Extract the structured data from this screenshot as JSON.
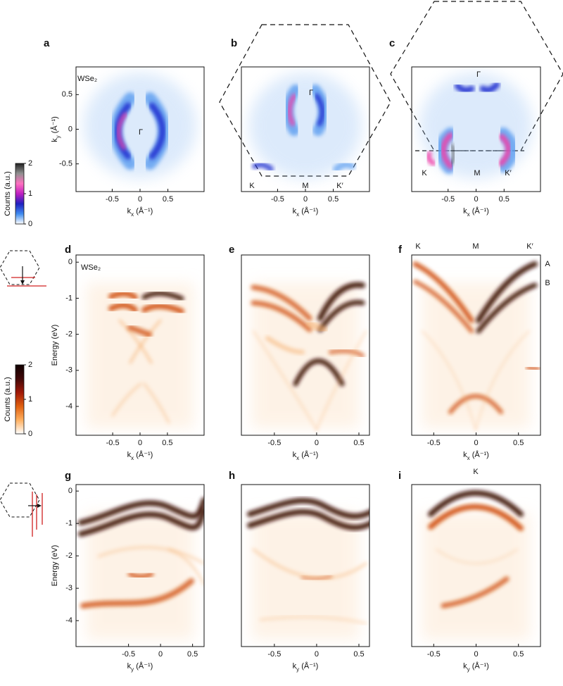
{
  "panels": [
    {
      "letter": "a",
      "xlim": [
        -1.15,
        1.15
      ],
      "ylim": [
        -0.9,
        0.9
      ],
      "xticks": [
        -0.5,
        0,
        0.5
      ],
      "yticks": [
        -0.5,
        0,
        0.5
      ],
      "xlabel": {
        "base": "k",
        "sub": "x",
        "unit": " (Å⁻¹)"
      },
      "ylabel": {
        "base": "k",
        "sub": "y",
        "unit": " (Å⁻¹)"
      },
      "annotations": [
        "WSe₂",
        "Γ"
      ]
    },
    {
      "letter": "b",
      "xlim": [
        -1.15,
        1.15
      ],
      "ylim": [
        -0.9,
        0.9
      ],
      "xticks": [
        -0.5,
        0,
        0.5
      ],
      "xlabel": {
        "base": "k",
        "sub": "x",
        "unit": " (Å⁻¹)"
      },
      "annotations": [
        "Γ",
        "K",
        "M",
        "K′"
      ]
    },
    {
      "letter": "c",
      "xlim": [
        -1.15,
        1.15
      ],
      "ylim": [
        -0.9,
        0.9
      ],
      "xticks": [
        -0.5,
        0,
        0.5
      ],
      "xlabel": {
        "base": "k",
        "sub": "x",
        "unit": " (Å⁻¹)"
      },
      "annotations": [
        "Γ",
        "K",
        "M",
        "K′"
      ]
    },
    {
      "letter": "d",
      "xlim": [
        -1.17,
        1.17
      ],
      "ylim": [
        -4.8,
        0.2
      ],
      "xticks": [
        -0.5,
        0,
        0.5
      ],
      "yticks": [
        0,
        -1,
        -2,
        -3,
        -4
      ],
      "xlabel": {
        "base": "k",
        "sub": "x",
        "unit": " (Å⁻¹)"
      },
      "ylabel": "Energy (eV)",
      "annotations": [
        "WSe₂"
      ]
    },
    {
      "letter": "e",
      "xlim": [
        -0.89,
        0.625
      ],
      "ylim": [
        -4.8,
        0.2
      ],
      "xticks": [
        -0.5,
        0,
        0.5
      ],
      "xlabel": {
        "base": "k",
        "sub": "x",
        "unit": " (Å⁻¹)"
      },
      "annotations": []
    },
    {
      "letter": "f",
      "xlim": [
        -0.76,
        0.76
      ],
      "ylim": [
        -4.8,
        0.2
      ],
      "xticks": [
        -0.5,
        0,
        0.5
      ],
      "xlabel": {
        "base": "k",
        "sub": "x",
        "unit": " (Å⁻¹)"
      },
      "annotations": [
        "K",
        "M",
        "K′",
        "A",
        "B"
      ]
    },
    {
      "letter": "g",
      "xlim": [
        -1.32,
        0.68
      ],
      "ylim": [
        -4.8,
        0.2
      ],
      "xticks": [
        -0.5,
        0,
        0.5
      ],
      "yticks": [
        0,
        -1,
        -2,
        -3,
        -4
      ],
      "xlabel": {
        "base": "k",
        "sub": "y",
        "unit": " (Å⁻¹)"
      },
      "ylabel": "Energy (eV)",
      "annotations": []
    },
    {
      "letter": "h",
      "xlim": [
        -0.89,
        0.625
      ],
      "ylim": [
        -4.8,
        0.2
      ],
      "xticks": [
        -0.5,
        0,
        0.5
      ],
      "xlabel": {
        "base": "k",
        "sub": "y",
        "unit": " (Å⁻¹)"
      },
      "annotations": []
    },
    {
      "letter": "i",
      "xlim": [
        -0.76,
        0.76
      ],
      "ylim": [
        -4.8,
        0.2
      ],
      "xticks": [
        -0.5,
        0,
        0.5
      ],
      "xlabel": {
        "base": "k",
        "sub": "y",
        "unit": " (Å⁻¹)"
      },
      "annotations": [
        "K"
      ]
    }
  ],
  "colorbars": [
    {
      "label": "Counts (a.u.)",
      "lim": [
        0,
        2
      ],
      "ticks": [
        0,
        1,
        2
      ],
      "colors": [
        "#ffffff",
        "#3f8cf0",
        "#2020c0",
        "#c020c0",
        "#ff70c0",
        "#909090",
        "#202020"
      ]
    },
    {
      "label": "Counts (a.u.)",
      "lim": [
        0,
        2
      ],
      "ticks": [
        0,
        1,
        2
      ],
      "colors": [
        "#ffffff",
        "#ffb060",
        "#e06010",
        "#a01808",
        "#400808",
        "#100000"
      ]
    }
  ]
}
